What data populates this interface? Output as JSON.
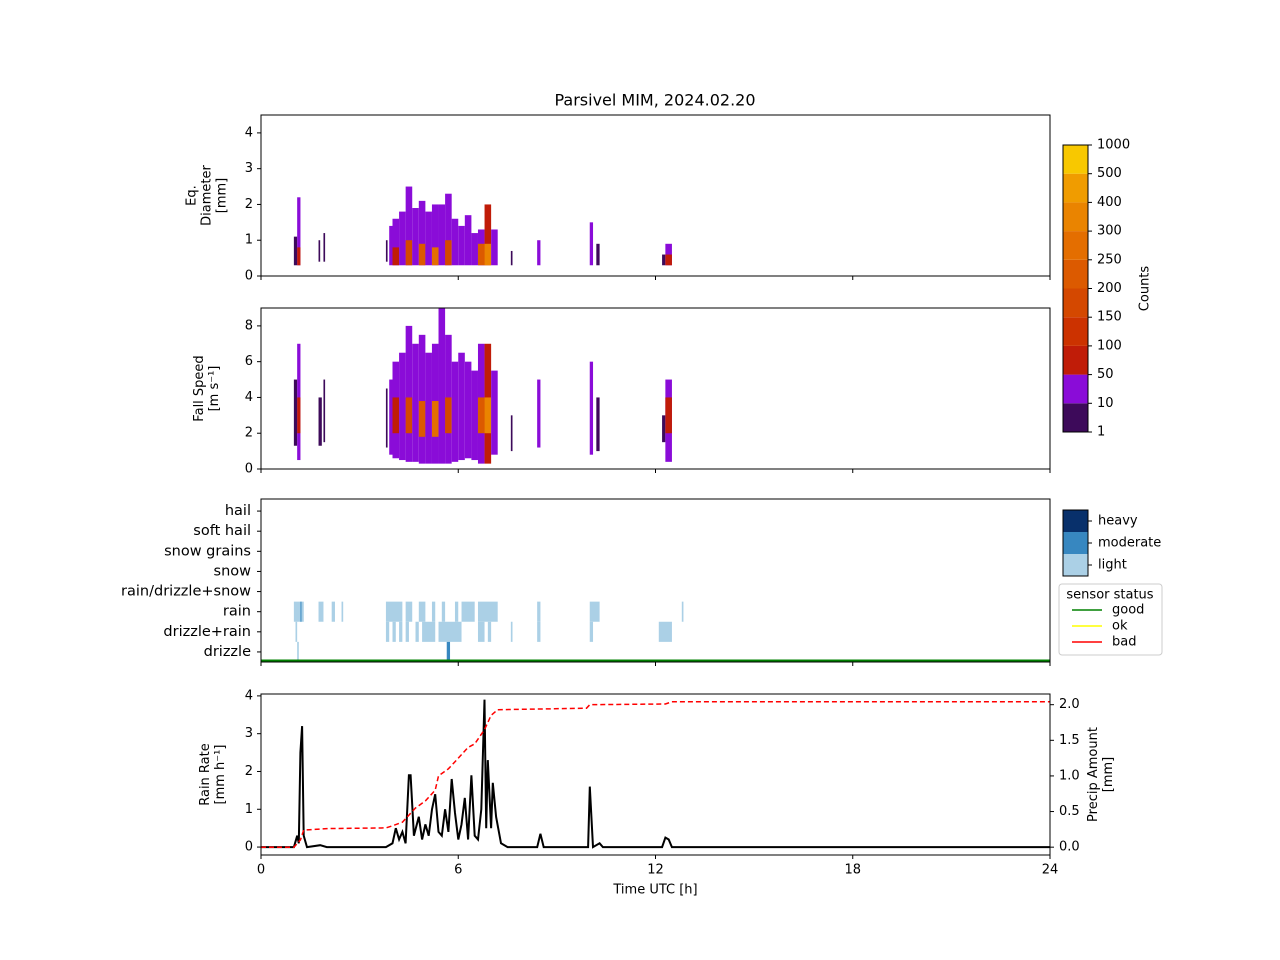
{
  "title": "Parsivel MIM, 2024.02.20",
  "chart_data": [
    {
      "type": "heatmap",
      "ylabel": [
        "Eq.",
        "Diameter",
        "[mm]"
      ],
      "ylim": [
        0,
        4.5
      ],
      "yticks": [
        0,
        1,
        2,
        3,
        4
      ],
      "columns": [
        [
          1.0,
          1.1,
          0.3,
          1.1,
          5
        ],
        [
          1.1,
          1.2,
          0.3,
          2.2,
          20
        ],
        [
          1.1,
          1.2,
          0.3,
          0.8,
          60
        ],
        [
          1.75,
          1.8,
          0.4,
          1.0,
          5
        ],
        [
          1.9,
          1.95,
          0.4,
          1.2,
          3
        ],
        [
          3.8,
          3.85,
          0.4,
          1.0,
          5
        ],
        [
          3.9,
          4.0,
          0.3,
          1.4,
          15
        ],
        [
          4.0,
          4.2,
          0.3,
          1.6,
          30
        ],
        [
          4.0,
          4.2,
          0.3,
          0.8,
          80
        ],
        [
          4.2,
          4.4,
          0.3,
          1.8,
          20
        ],
        [
          4.4,
          4.6,
          0.3,
          2.5,
          40
        ],
        [
          4.4,
          4.6,
          0.3,
          1.0,
          150
        ],
        [
          4.6,
          4.8,
          0.3,
          1.9,
          25
        ],
        [
          4.8,
          5.0,
          0.3,
          2.1,
          35
        ],
        [
          4.8,
          5.0,
          0.3,
          0.9,
          200
        ],
        [
          5.0,
          5.2,
          0.3,
          1.8,
          30
        ],
        [
          5.2,
          5.4,
          0.3,
          2.0,
          40
        ],
        [
          5.2,
          5.4,
          0.3,
          0.8,
          250
        ],
        [
          5.4,
          5.6,
          0.3,
          2.0,
          30
        ],
        [
          5.6,
          5.8,
          0.3,
          2.3,
          40
        ],
        [
          5.6,
          5.8,
          0.3,
          1.0,
          150
        ],
        [
          5.8,
          6.0,
          0.3,
          1.6,
          25
        ],
        [
          6.0,
          6.2,
          0.3,
          1.4,
          20
        ],
        [
          6.2,
          6.4,
          0.3,
          1.7,
          30
        ],
        [
          6.4,
          6.6,
          0.3,
          1.2,
          15
        ],
        [
          6.6,
          6.8,
          0.3,
          1.3,
          40
        ],
        [
          6.6,
          6.8,
          0.3,
          0.9,
          200
        ],
        [
          6.8,
          7.0,
          0.3,
          2.0,
          50
        ],
        [
          6.8,
          7.0,
          0.3,
          0.9,
          300
        ],
        [
          7.0,
          7.2,
          0.3,
          1.3,
          30
        ],
        [
          7.6,
          7.65,
          0.3,
          0.7,
          3
        ],
        [
          8.4,
          8.5,
          0.3,
          1.0,
          10
        ],
        [
          10.0,
          10.1,
          0.3,
          1.5,
          15
        ],
        [
          10.2,
          10.3,
          0.3,
          0.9,
          8
        ],
        [
          12.2,
          12.3,
          0.3,
          0.6,
          5
        ],
        [
          12.3,
          12.5,
          0.3,
          0.9,
          20
        ],
        [
          12.3,
          12.5,
          0.3,
          0.6,
          60
        ]
      ],
      "colorbar": {
        "label": "Counts",
        "ticks": [
          1,
          10,
          50,
          100,
          150,
          200,
          250,
          300,
          400,
          500,
          1000
        ],
        "colors": [
          "#3d0a5a",
          "#8a0cd8",
          "#c01c08",
          "#cc3200",
          "#d44800",
          "#dc5a00",
          "#e46e00",
          "#ea8400",
          "#f09c00",
          "#f8c800"
        ]
      }
    },
    {
      "type": "heatmap",
      "ylabel": [
        "Fall Speed",
        "[m s⁻¹]"
      ],
      "ylim": [
        0,
        9
      ],
      "yticks": [
        0,
        2,
        4,
        6,
        8
      ],
      "columns": [
        [
          1.0,
          1.1,
          1.3,
          5.0,
          5
        ],
        [
          1.1,
          1.2,
          0.5,
          7.0,
          20
        ],
        [
          1.1,
          1.2,
          2.0,
          4.0,
          60
        ],
        [
          1.75,
          1.85,
          1.3,
          4.0,
          5
        ],
        [
          1.9,
          1.95,
          1.5,
          5.0,
          3
        ],
        [
          3.8,
          3.85,
          1.2,
          4.5,
          5
        ],
        [
          3.9,
          4.0,
          0.8,
          5.0,
          15
        ],
        [
          4.0,
          4.2,
          0.6,
          6.0,
          30
        ],
        [
          4.0,
          4.2,
          2.0,
          4.0,
          80
        ],
        [
          4.2,
          4.4,
          0.5,
          6.5,
          20
        ],
        [
          4.4,
          4.6,
          0.4,
          8.0,
          40
        ],
        [
          4.4,
          4.6,
          2.0,
          4.0,
          150
        ],
        [
          4.6,
          4.8,
          0.4,
          7.0,
          25
        ],
        [
          4.8,
          5.0,
          0.3,
          7.5,
          35
        ],
        [
          4.8,
          5.0,
          1.8,
          3.8,
          200
        ],
        [
          5.0,
          5.2,
          0.3,
          6.5,
          30
        ],
        [
          5.2,
          5.4,
          0.3,
          7.0,
          40
        ],
        [
          5.2,
          5.4,
          1.8,
          3.8,
          250
        ],
        [
          5.4,
          5.6,
          0.3,
          9.0,
          30
        ],
        [
          5.6,
          5.8,
          0.3,
          7.5,
          40
        ],
        [
          5.6,
          5.8,
          2.0,
          4.0,
          150
        ],
        [
          5.8,
          6.0,
          0.4,
          6.0,
          25
        ],
        [
          6.0,
          6.2,
          0.5,
          6.5,
          20
        ],
        [
          6.2,
          6.4,
          0.6,
          6.0,
          30
        ],
        [
          6.4,
          6.6,
          0.5,
          5.5,
          15
        ],
        [
          6.6,
          6.8,
          0.3,
          7.0,
          40
        ],
        [
          6.6,
          6.8,
          2.0,
          4.0,
          200
        ],
        [
          6.8,
          7.0,
          0.3,
          7.0,
          50
        ],
        [
          6.8,
          7.0,
          2.0,
          4.0,
          300
        ],
        [
          7.0,
          7.2,
          0.8,
          5.5,
          30
        ],
        [
          7.6,
          7.65,
          1.0,
          3.0,
          3
        ],
        [
          8.4,
          8.5,
          1.2,
          5.0,
          10
        ],
        [
          10.0,
          10.1,
          0.8,
          6.0,
          15
        ],
        [
          10.2,
          10.3,
          1.0,
          4.0,
          8
        ],
        [
          12.2,
          12.3,
          1.5,
          3.0,
          5
        ],
        [
          12.3,
          12.5,
          0.4,
          5.0,
          20
        ],
        [
          12.3,
          12.5,
          2.0,
          4.0,
          60
        ]
      ]
    },
    {
      "type": "timeline",
      "ylim": [
        -0.5,
        7.6
      ],
      "categories": [
        "drizzle",
        "drizzle+rain",
        "rain",
        "rain/drizzle+snow",
        "snow",
        "snow grains",
        "soft hail",
        "hail"
      ],
      "intensity": [
        {
          "name": "heavy",
          "color": "#08306b"
        },
        {
          "name": "moderate",
          "color": "#3787c0"
        },
        {
          "name": "light",
          "color": "#abd0e6"
        }
      ],
      "bars": [
        [
          1.0,
          1.3,
          2,
          2
        ],
        [
          1.2,
          1.22,
          2,
          1
        ],
        [
          1.75,
          1.9,
          2,
          2
        ],
        [
          2.15,
          2.25,
          2,
          2
        ],
        [
          2.45,
          2.5,
          2,
          2
        ],
        [
          3.8,
          4.3,
          2,
          2
        ],
        [
          4.4,
          4.6,
          2,
          2
        ],
        [
          4.8,
          5.0,
          2,
          2
        ],
        [
          5.2,
          5.3,
          2,
          2
        ],
        [
          5.5,
          5.6,
          2,
          2
        ],
        [
          5.9,
          6.0,
          2,
          2
        ],
        [
          6.1,
          6.5,
          2,
          2
        ],
        [
          6.6,
          7.2,
          2,
          2
        ],
        [
          8.4,
          8.5,
          2,
          2
        ],
        [
          10.0,
          10.3,
          2,
          2
        ],
        [
          12.8,
          12.85,
          2,
          2
        ],
        [
          1.05,
          1.1,
          1,
          2
        ],
        [
          3.8,
          3.9,
          1,
          2
        ],
        [
          4.0,
          4.1,
          1,
          2
        ],
        [
          4.2,
          4.3,
          1,
          2
        ],
        [
          4.4,
          4.5,
          1,
          2
        ],
        [
          4.7,
          4.8,
          1,
          2
        ],
        [
          4.9,
          5.3,
          1,
          2
        ],
        [
          5.4,
          6.1,
          1,
          2
        ],
        [
          6.6,
          6.8,
          1,
          2
        ],
        [
          6.9,
          7.0,
          1,
          2
        ],
        [
          7.6,
          7.65,
          1,
          2
        ],
        [
          8.4,
          8.5,
          1,
          2
        ],
        [
          10.0,
          10.1,
          1,
          2
        ],
        [
          12.1,
          12.5,
          1,
          2
        ],
        [
          1.1,
          1.15,
          0,
          2
        ],
        [
          5.65,
          5.75,
          0,
          1
        ]
      ],
      "status_legend": {
        "title": "sensor status",
        "entries": [
          {
            "name": "good",
            "color": "#008000"
          },
          {
            "name": "ok",
            "color": "#ffff00"
          },
          {
            "name": "bad",
            "color": "#ff0000"
          }
        ]
      },
      "status_periods": [
        [
          0,
          24,
          0
        ]
      ]
    },
    {
      "type": "line",
      "xlabel": "Time UTC [h]",
      "xlim": [
        0,
        24
      ],
      "xticks": [
        0,
        6,
        12,
        18,
        24
      ],
      "ylabel": [
        "Rain Rate",
        "[mm h⁻¹]"
      ],
      "ylim": [
        -0.21,
        4.05
      ],
      "yticks": [
        0,
        1,
        2,
        3,
        4
      ],
      "y2label": [
        "Precip Amount",
        "[mm]"
      ],
      "y2lim": [
        -0.11,
        2.15
      ],
      "y2ticks": [
        {
          "value": 0,
          "label": "0.0"
        },
        {
          "value": 0.5,
          "label": "0.5"
        },
        {
          "value": 1,
          "label": "1.0"
        },
        {
          "value": 1.5,
          "label": "1.5"
        },
        {
          "value": 2,
          "label": "2.0"
        }
      ],
      "series": [
        {
          "color": "#000000",
          "x": [
            0,
            1.0,
            1.1,
            1.15,
            1.2,
            1.25,
            1.3,
            1.4,
            1.8,
            2.0,
            3.8,
            4.0,
            4.1,
            4.2,
            4.3,
            4.4,
            4.5,
            4.55,
            4.65,
            4.8,
            4.9,
            5.0,
            5.1,
            5.2,
            5.3,
            5.4,
            5.5,
            5.6,
            5.7,
            5.8,
            5.9,
            6.0,
            6.1,
            6.2,
            6.3,
            6.4,
            6.5,
            6.6,
            6.7,
            6.8,
            6.85,
            6.9,
            7.0,
            7.05,
            7.15,
            7.3,
            7.5,
            8.4,
            8.5,
            8.6,
            9.95,
            10.0,
            10.1,
            10.3,
            10.4,
            12.2,
            12.3,
            12.4,
            12.5,
            24
          ],
          "values": [
            0,
            0,
            0.3,
            0.1,
            2.5,
            3.2,
            0.3,
            0,
            0.05,
            0,
            0,
            0.1,
            0.5,
            0.2,
            0.4,
            0.1,
            1.9,
            1.9,
            0.3,
            0.8,
            0.2,
            0.6,
            0.3,
            1.0,
            1.4,
            0.4,
            0.3,
            1.0,
            0.4,
            1.8,
            0.9,
            0.2,
            0.6,
            1.3,
            0.2,
            1.9,
            0.3,
            0.2,
            1.0,
            3.9,
            0.5,
            2.3,
            0.5,
            1.7,
            0.8,
            0.1,
            0,
            0,
            0.35,
            0,
            0,
            1.6,
            0,
            0.1,
            0,
            0,
            0.25,
            0.2,
            0,
            0
          ]
        },
        {
          "color": "#ff0000",
          "dashed": true,
          "axis": "y2",
          "x": [
            0,
            1.0,
            1.2,
            1.3,
            2.0,
            3.8,
            4.0,
            4.3,
            4.5,
            4.7,
            5.0,
            5.3,
            5.4,
            5.7,
            5.9,
            6.1,
            6.3,
            6.5,
            6.8,
            7.0,
            7.2,
            8.5,
            9.9,
            10.0,
            12.3,
            12.5,
            24
          ],
          "values": [
            0,
            0,
            0.1,
            0.24,
            0.26,
            0.27,
            0.3,
            0.35,
            0.45,
            0.55,
            0.65,
            0.8,
            1.0,
            1.1,
            1.2,
            1.3,
            1.4,
            1.45,
            1.65,
            1.85,
            1.93,
            1.94,
            1.95,
            2.0,
            2.01,
            2.04,
            2.04
          ]
        }
      ]
    }
  ]
}
